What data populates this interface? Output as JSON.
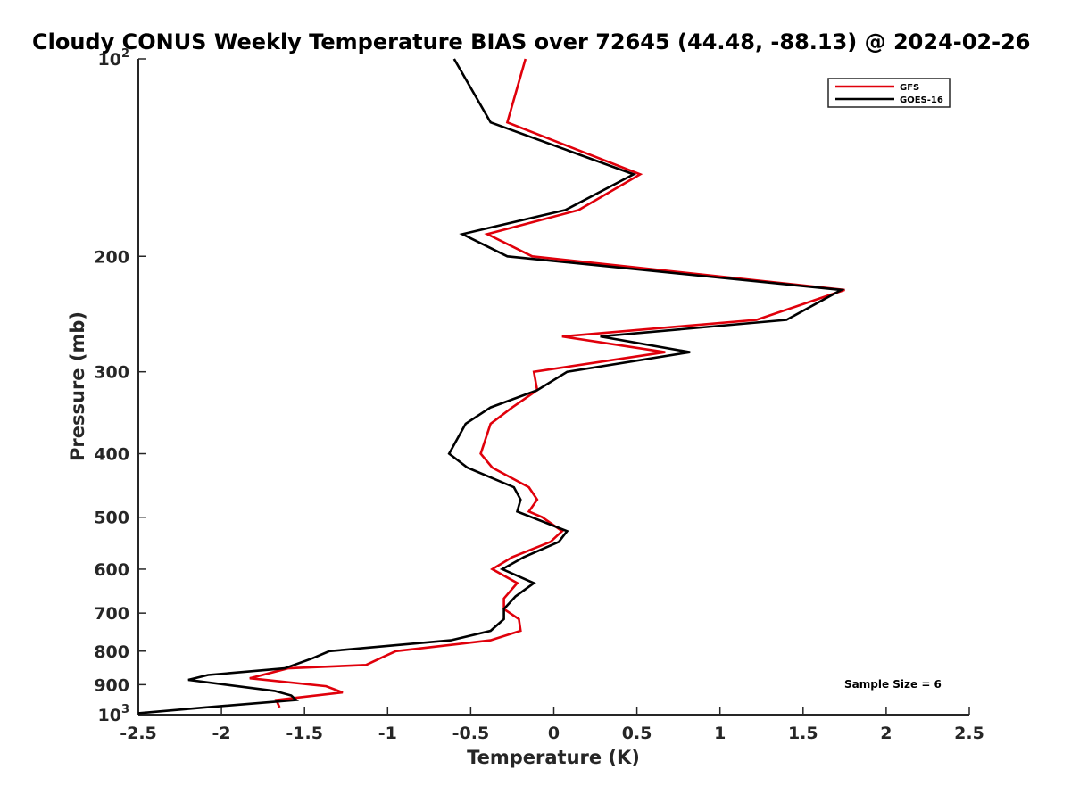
{
  "chart_data": {
    "type": "line",
    "title": "Cloudy CONUS Weekly Temperature BIAS over 72645 (44.48, -88.13) @ 2024-02-26",
    "xlabel": "Temperature (K)",
    "ylabel": "Pressure (mb)",
    "xlim": [
      -2.5,
      2.5
    ],
    "ylim": [
      1000,
      100
    ],
    "y_scale": "log",
    "y_reversed": true,
    "grid": false,
    "legend_position": "top-right",
    "x_ticks": [
      -2.5,
      -2,
      -1.5,
      -1,
      -0.5,
      0,
      0.5,
      1,
      1.5,
      2,
      2.5
    ],
    "x_tick_labels": [
      "-2.5",
      "-2",
      "-1.5",
      "-1",
      "-0.5",
      "0",
      "0.5",
      "1",
      "1.5",
      "2",
      "2.5"
    ],
    "y_ticks": [
      100,
      200,
      300,
      400,
      500,
      600,
      700,
      800,
      900,
      1000
    ],
    "y_tick_labels": [
      {
        "base": "10",
        "exp": "2"
      },
      {
        "base": "200"
      },
      {
        "base": "300"
      },
      {
        "base": "400"
      },
      {
        "base": "500"
      },
      {
        "base": "600"
      },
      {
        "base": "700"
      },
      {
        "base": "800"
      },
      {
        "base": "900"
      },
      {
        "base": "10",
        "exp": "3"
      }
    ],
    "series": [
      {
        "name": "GFS",
        "color": "#e0000b",
        "points": [
          [
            -0.17,
            100
          ],
          [
            -0.28,
            125
          ],
          [
            0.52,
            150
          ],
          [
            0.15,
            170
          ],
          [
            -0.4,
            185
          ],
          [
            -0.13,
            200
          ],
          [
            1.75,
            225
          ],
          [
            1.22,
            250
          ],
          [
            0.05,
            265
          ],
          [
            0.67,
            280
          ],
          [
            -0.12,
            300
          ],
          [
            -0.1,
            320
          ],
          [
            -0.25,
            340
          ],
          [
            -0.38,
            360
          ],
          [
            -0.44,
            400
          ],
          [
            -0.37,
            420
          ],
          [
            -0.15,
            450
          ],
          [
            -0.1,
            470
          ],
          [
            -0.15,
            490
          ],
          [
            -0.07,
            500
          ],
          [
            0.05,
            525
          ],
          [
            -0.02,
            545
          ],
          [
            -0.25,
            575
          ],
          [
            -0.37,
            600
          ],
          [
            -0.22,
            630
          ],
          [
            -0.3,
            665
          ],
          [
            -0.3,
            690
          ],
          [
            -0.21,
            715
          ],
          [
            -0.2,
            745
          ],
          [
            -0.38,
            770
          ],
          [
            -0.95,
            800
          ],
          [
            -1.02,
            815
          ],
          [
            -1.13,
            840
          ],
          [
            -1.6,
            850
          ],
          [
            -1.83,
            880
          ],
          [
            -1.37,
            905
          ],
          [
            -1.27,
            925
          ],
          [
            -1.67,
            950
          ],
          [
            -1.65,
            975
          ]
        ]
      },
      {
        "name": "GOES-16",
        "color": "#000000",
        "points": [
          [
            -0.6,
            100
          ],
          [
            -0.38,
            125
          ],
          [
            0.48,
            150
          ],
          [
            0.07,
            170
          ],
          [
            -0.55,
            185
          ],
          [
            -0.28,
            200
          ],
          [
            1.73,
            225
          ],
          [
            1.4,
            250
          ],
          [
            0.28,
            265
          ],
          [
            0.82,
            280
          ],
          [
            0.08,
            300
          ],
          [
            -0.1,
            320
          ],
          [
            -0.38,
            340
          ],
          [
            -0.53,
            360
          ],
          [
            -0.63,
            400
          ],
          [
            -0.52,
            420
          ],
          [
            -0.24,
            450
          ],
          [
            -0.2,
            470
          ],
          [
            -0.22,
            490
          ],
          [
            0.08,
            525
          ],
          [
            0.03,
            545
          ],
          [
            -0.18,
            575
          ],
          [
            -0.31,
            600
          ],
          [
            -0.12,
            630
          ],
          [
            -0.23,
            660
          ],
          [
            -0.3,
            690
          ],
          [
            -0.3,
            715
          ],
          [
            -0.38,
            745
          ],
          [
            -0.62,
            770
          ],
          [
            -1.35,
            800
          ],
          [
            -1.45,
            820
          ],
          [
            -1.62,
            850
          ],
          [
            -2.08,
            870
          ],
          [
            -2.2,
            885
          ],
          [
            -1.68,
            920
          ],
          [
            -1.58,
            935
          ],
          [
            -1.55,
            950
          ],
          [
            -2.1,
            975
          ],
          [
            -2.5,
            995
          ]
        ]
      }
    ],
    "annotations": [
      {
        "text": "Sample Size = 6"
      }
    ]
  },
  "colors": {
    "axis": "#262626",
    "background": "#ffffff"
  }
}
